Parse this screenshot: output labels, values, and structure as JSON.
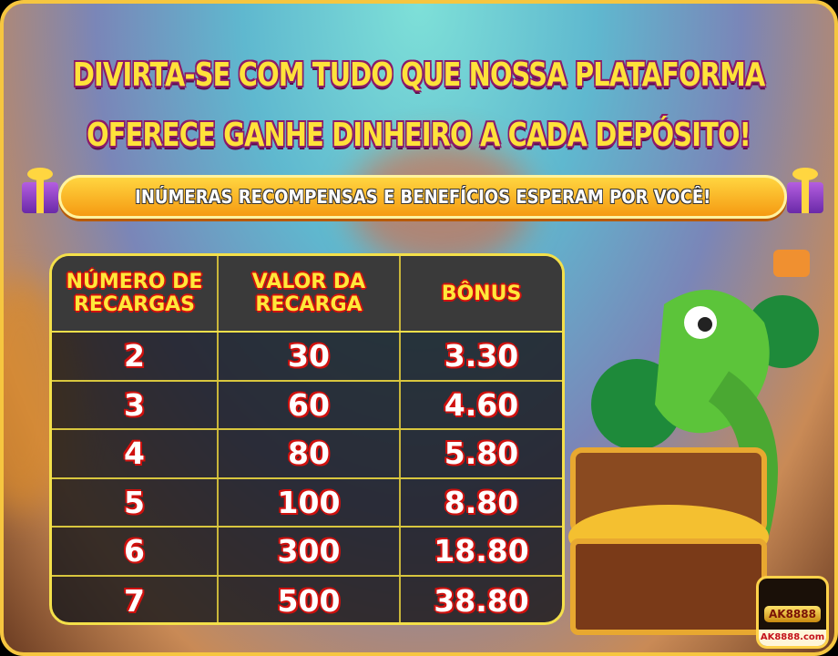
{
  "title_line1": "DIVIRTA-SE COM TUDO QUE NOSSA PLATAFORMA",
  "title_line2": "OFERECE GANHE DINHEIRO A CADA DEPÓSITO!",
  "banner": "INÚMERAS RECOMPENSAS E BENEFÍCIOS ESPERAM POR VOCÊ!",
  "table": {
    "headers": [
      "NÚMERO DE RECARGAS",
      "VALOR DA RECARGA",
      "BÔNUS"
    ],
    "rows": [
      [
        "2",
        "30",
        "3.30"
      ],
      [
        "3",
        "60",
        "4.60"
      ],
      [
        "4",
        "80",
        "5.80"
      ],
      [
        "5",
        "100",
        "8.80"
      ],
      [
        "6",
        "300",
        "18.80"
      ],
      [
        "7",
        "500",
        "38.80"
      ]
    ]
  },
  "logo": {
    "badge": "AK8888",
    "site": "AK8888.com"
  },
  "colors": {
    "title": "#ffe23a",
    "accent_border": "#f4e04a",
    "number_outline": "#d0110e",
    "banner": "#f59a12"
  }
}
